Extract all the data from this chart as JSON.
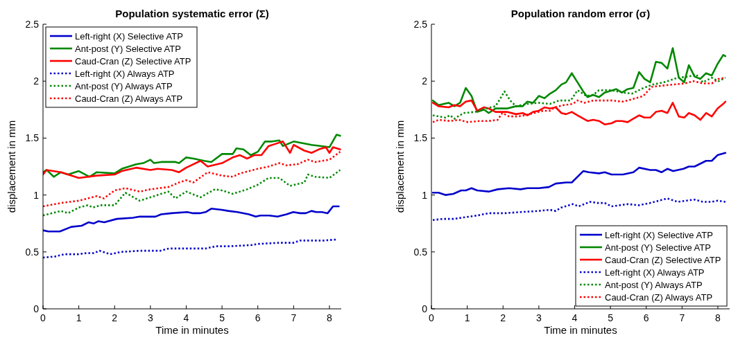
{
  "chart_data": [
    {
      "type": "line",
      "title": "Population systematic error (Σ)",
      "xlabel": "Time in minutes",
      "ylabel": "displacement in mm",
      "xlim": [
        0,
        8.33
      ],
      "ylim": [
        0,
        2.5
      ],
      "xticks": [
        0,
        1,
        2,
        3,
        4,
        5,
        6,
        7,
        8
      ],
      "yticks": [
        0,
        0.5,
        1,
        1.5,
        2,
        2.5
      ],
      "legend": "top left",
      "series": [
        {
          "name": "Left-right (X) Selective ATP",
          "color": "#0000cc",
          "line_style": "solid",
          "x": [
            0,
            0.15,
            0.47,
            0.79,
            1.08,
            1.27,
            1.42,
            1.55,
            1.71,
            2.06,
            2.51,
            2.7,
            3.14,
            3.3,
            3.59,
            4.03,
            4.19,
            4.38,
            4.54,
            4.7,
            4.99,
            5.18,
            5.43,
            5.75,
            5.94,
            6.07,
            6.32,
            6.55,
            6.8,
            6.99,
            7.18,
            7.34,
            7.5,
            7.63,
            7.79,
            7.95,
            8.1,
            8.26
          ],
          "values": [
            0.69,
            0.68,
            0.68,
            0.72,
            0.73,
            0.76,
            0.75,
            0.77,
            0.76,
            0.79,
            0.8,
            0.81,
            0.81,
            0.83,
            0.84,
            0.85,
            0.84,
            0.84,
            0.85,
            0.88,
            0.87,
            0.86,
            0.85,
            0.83,
            0.81,
            0.82,
            0.82,
            0.81,
            0.83,
            0.85,
            0.84,
            0.84,
            0.86,
            0.85,
            0.85,
            0.84,
            0.9,
            0.9
          ]
        },
        {
          "name": "Ant-post (Y) Selective ATP",
          "color": "#008800",
          "line_style": "solid",
          "x": [
            0,
            0.1,
            0.3,
            0.5,
            0.7,
            1,
            1.3,
            1.5,
            2,
            2.2,
            2.6,
            2.8,
            3,
            3.1,
            3.3,
            3.7,
            3.8,
            4,
            4.2,
            4.5,
            4.7,
            5,
            5.3,
            5.4,
            5.6,
            5.8,
            6,
            6.2,
            6.4,
            6.6,
            6.7,
            7,
            7.5,
            8,
            8.2,
            8.3
          ],
          "values": [
            1.2,
            1.22,
            1.16,
            1.2,
            1.18,
            1.21,
            1.16,
            1.2,
            1.19,
            1.23,
            1.27,
            1.28,
            1.31,
            1.28,
            1.29,
            1.29,
            1.28,
            1.33,
            1.32,
            1.3,
            1.29,
            1.36,
            1.36,
            1.41,
            1.4,
            1.35,
            1.38,
            1.47,
            1.47,
            1.48,
            1.43,
            1.47,
            1.44,
            1.42,
            1.53,
            1.52
          ]
        },
        {
          "name": "Caud-Cran (Z) Selective ATP",
          "color": "#ff0000",
          "line_style": "solid",
          "x": [
            0,
            0.1,
            0.5,
            0.7,
            1,
            1.5,
            2,
            2.2,
            2.6,
            3,
            3.2,
            3.6,
            3.8,
            4,
            4.4,
            4.6,
            5,
            5.3,
            5.5,
            5.7,
            5.9,
            6.1,
            6.3,
            6.5,
            6.7,
            6.9,
            7,
            7.3,
            7.5,
            7.7,
            7.9,
            8,
            8.1,
            8.3
          ],
          "values": [
            1.18,
            1.22,
            1.2,
            1.18,
            1.15,
            1.17,
            1.18,
            1.21,
            1.24,
            1.22,
            1.23,
            1.22,
            1.2,
            1.24,
            1.3,
            1.25,
            1.28,
            1.33,
            1.35,
            1.32,
            1.35,
            1.35,
            1.43,
            1.45,
            1.47,
            1.37,
            1.44,
            1.39,
            1.37,
            1.4,
            1.42,
            1.37,
            1.42,
            1.4
          ]
        },
        {
          "name": "Left-right (X) Always ATP",
          "color": "#0000cc",
          "line_style": "dotted",
          "x": [
            0,
            0.34,
            0.6,
            0.98,
            1.23,
            1.42,
            1.58,
            1.87,
            2.19,
            2.7,
            3.27,
            3.52,
            4.1,
            4.54,
            4.83,
            5.24,
            5.81,
            6,
            6.58,
            6.99,
            7.18,
            7.47,
            7.85,
            8.23
          ],
          "values": [
            0.45,
            0.46,
            0.48,
            0.48,
            0.49,
            0.49,
            0.51,
            0.48,
            0.5,
            0.51,
            0.51,
            0.53,
            0.53,
            0.53,
            0.55,
            0.55,
            0.56,
            0.57,
            0.58,
            0.58,
            0.6,
            0.6,
            0.6,
            0.61
          ]
        },
        {
          "name": "Ant-post (Y) Always ATP",
          "color": "#008800",
          "line_style": "dotted",
          "x": [
            0,
            0.5,
            0.7,
            1,
            1.25,
            1.4,
            1.6,
            2,
            2.3,
            2.7,
            3,
            3.5,
            3.7,
            4,
            4.4,
            4.8,
            5,
            5.3,
            5.7,
            6,
            6.3,
            6.6,
            6.9,
            7.3,
            7.4,
            7.6,
            8,
            8.3
          ],
          "values": [
            0.82,
            0.86,
            0.84,
            0.89,
            0.91,
            0.89,
            0.91,
            0.91,
            1.02,
            0.95,
            0.98,
            1.03,
            0.97,
            1.03,
            0.98,
            1.05,
            1.04,
            1.01,
            1.05,
            1.09,
            1.15,
            1.15,
            1.08,
            1.11,
            1.18,
            1.16,
            1.15,
            1.22
          ]
        },
        {
          "name": "Caud-Cran (Z) Always ATP",
          "color": "#ff0000",
          "line_style": "dotted",
          "x": [
            0,
            0.5,
            1,
            1.5,
            1.7,
            2,
            2.3,
            2.7,
            3,
            3.5,
            3.8,
            4,
            4.2,
            4.6,
            5,
            5.3,
            5.5,
            6,
            6.3,
            6.6,
            6.8,
            7.1,
            7.4,
            7.6,
            8,
            8.3
          ],
          "values": [
            0.9,
            0.93,
            0.95,
            0.99,
            0.97,
            1.04,
            1.06,
            1.03,
            1.05,
            1.07,
            1.11,
            1.13,
            1.11,
            1.2,
            1.17,
            1.16,
            1.19,
            1.23,
            1.25,
            1.28,
            1.26,
            1.27,
            1.31,
            1.29,
            1.31,
            1.38
          ]
        }
      ]
    },
    {
      "type": "line",
      "title": "Population random error (σ)",
      "xlabel": "Time in minutes",
      "ylabel": "displacement in mm",
      "xlim": [
        0,
        8.33
      ],
      "ylim": [
        0,
        2.5
      ],
      "xticks": [
        0,
        1,
        2,
        3,
        4,
        5,
        6,
        7,
        8
      ],
      "yticks": [
        0,
        0.5,
        1,
        1.5,
        2,
        2.5
      ],
      "legend": "bottom right",
      "series": [
        {
          "name": "Left-right (X) Selective ATP",
          "color": "#0000cc",
          "line_style": "solid",
          "x": [
            0.04,
            0.2,
            0.39,
            0.61,
            0.83,
            0.96,
            1.12,
            1.28,
            1.6,
            1.85,
            2.17,
            2.49,
            2.68,
            3,
            3.28,
            3.47,
            3.76,
            3.92,
            4.24,
            4.4,
            4.68,
            4.84,
            5.03,
            5.35,
            5.64,
            5.8,
            6.11,
            6.27,
            6.43,
            6.59,
            6.75,
            7.04,
            7.19,
            7.35,
            7.67,
            7.83,
            7.99,
            8.21
          ],
          "values": [
            1.02,
            1.02,
            1,
            1.01,
            1.04,
            1.04,
            1.06,
            1.04,
            1.03,
            1.05,
            1.06,
            1.05,
            1.06,
            1.06,
            1.07,
            1.1,
            1.11,
            1.11,
            1.21,
            1.2,
            1.19,
            1.2,
            1.18,
            1.18,
            1.2,
            1.24,
            1.22,
            1.22,
            1.2,
            1.23,
            1.21,
            1.23,
            1.25,
            1.25,
            1.3,
            1.3,
            1.35,
            1.37
          ]
        },
        {
          "name": "Ant-post (Y) Selective ATP",
          "color": "#008800",
          "line_style": "solid",
          "x": [
            0.04,
            0.2,
            0.48,
            0.64,
            0.8,
            0.96,
            1.12,
            1.28,
            1.47,
            1.6,
            1.79,
            2.11,
            2.36,
            2.55,
            2.68,
            2.84,
            3,
            3.16,
            3.31,
            3.47,
            3.63,
            3.76,
            3.92,
            4.08,
            4.24,
            4.36,
            4.52,
            4.68,
            4.84,
            5.16,
            5.32,
            5.48,
            5.64,
            5.8,
            5.95,
            6.11,
            6.27,
            6.43,
            6.59,
            6.74,
            6.91,
            7.06,
            7.19,
            7.35,
            7.51,
            7.67,
            7.83,
            7.99,
            8.15,
            8.21
          ],
          "values": [
            1.83,
            1.79,
            1.81,
            1.78,
            1.81,
            1.94,
            1.87,
            1.73,
            1.75,
            1.72,
            1.76,
            1.76,
            1.78,
            1.78,
            1.82,
            1.81,
            1.87,
            1.85,
            1.89,
            1.92,
            1.97,
            1.99,
            2.07,
            1.99,
            1.91,
            1.86,
            1.88,
            1.86,
            1.9,
            1.93,
            1.9,
            1.93,
            1.94,
            2.08,
            2.02,
            1.99,
            2.17,
            2.16,
            2.11,
            2.29,
            2.03,
            1.99,
            2.14,
            2.04,
            2.02,
            2.07,
            2.05,
            2.15,
            2.23,
            2.22
          ]
        },
        {
          "name": "Caud-Cran (Z) Selective ATP",
          "color": "#ff0000",
          "line_style": "solid",
          "x": [
            0.04,
            0.2,
            0.48,
            0.64,
            0.8,
            0.96,
            1.12,
            1.28,
            1.47,
            1.6,
            1.79,
            2.11,
            2.36,
            2.55,
            2.68,
            2.84,
            3,
            3.16,
            3.31,
            3.47,
            3.63,
            3.76,
            3.92,
            4.08,
            4.36,
            4.52,
            4.68,
            4.84,
            5.03,
            5.16,
            5.32,
            5.48,
            5.64,
            5.8,
            5.95,
            6.11,
            6.27,
            6.43,
            6.59,
            6.74,
            6.91,
            7.06,
            7.19,
            7.35,
            7.51,
            7.67,
            7.83,
            7.99,
            8.15,
            8.21
          ],
          "values": [
            1.81,
            1.78,
            1.77,
            1.79,
            1.78,
            1.82,
            1.83,
            1.74,
            1.77,
            1.76,
            1.73,
            1.73,
            1.71,
            1.72,
            1.7,
            1.73,
            1.74,
            1.77,
            1.76,
            1.77,
            1.72,
            1.71,
            1.73,
            1.7,
            1.65,
            1.66,
            1.65,
            1.62,
            1.63,
            1.65,
            1.65,
            1.64,
            1.67,
            1.7,
            1.68,
            1.68,
            1.73,
            1.74,
            1.72,
            1.81,
            1.69,
            1.68,
            1.72,
            1.7,
            1.66,
            1.72,
            1.69,
            1.76,
            1.8,
            1.82
          ]
        },
        {
          "name": "Left-right (X) Always ATP",
          "color": "#0000cc",
          "line_style": "dotted",
          "x": [
            0.04,
            0.32,
            0.64,
            0.83,
            1.28,
            1.6,
            2.04,
            2.49,
            3,
            3.31,
            3.47,
            3.63,
            3.95,
            4.11,
            4.43,
            4.65,
            4.84,
            5.03,
            5.48,
            5.8,
            6.11,
            6.59,
            6.88,
            7.35,
            7.58,
            7.83,
            7.99,
            8.21
          ],
          "values": [
            0.78,
            0.79,
            0.79,
            0.8,
            0.82,
            0.84,
            0.84,
            0.85,
            0.86,
            0.87,
            0.86,
            0.89,
            0.92,
            0.9,
            0.94,
            0.93,
            0.93,
            0.9,
            0.92,
            0.91,
            0.93,
            0.97,
            0.94,
            0.96,
            0.94,
            0.94,
            0.95,
            0.94
          ]
        },
        {
          "name": "Ant-post (Y) Always ATP",
          "color": "#008800",
          "line_style": "dotted",
          "x": [
            0.04,
            0.2,
            0.39,
            0.52,
            0.64,
            0.9,
            1.22,
            1.53,
            1.79,
            1.91,
            2.04,
            2.2,
            2.36,
            2.68,
            3,
            3.31,
            3.57,
            3.89,
            4.08,
            4.33,
            4.52,
            4.68,
            5.03,
            5.35,
            5.6,
            5.92,
            6.18,
            6.49,
            6.69,
            6.88,
            7.19,
            7.39,
            7.58,
            7.83,
            8.02,
            8.21
          ],
          "values": [
            1.7,
            1.69,
            1.68,
            1.7,
            1.67,
            1.72,
            1.73,
            1.76,
            1.78,
            1.84,
            1.91,
            1.83,
            1.78,
            1.8,
            1.81,
            1.8,
            1.83,
            1.83,
            1.92,
            1.87,
            1.88,
            1.92,
            1.92,
            1.9,
            1.89,
            1.94,
            1.97,
            1.99,
            2.01,
            2.03,
            2.04,
            2.06,
            1.99,
            2.03,
            2,
            2.03
          ]
        },
        {
          "name": "Caud-Cran (Z) Always ATP",
          "color": "#ff0000",
          "line_style": "dotted",
          "x": [
            0.04,
            0.2,
            0.52,
            0.77,
            1.02,
            1.34,
            1.6,
            1.85,
            1.98,
            2.17,
            2.42,
            2.61,
            2.87,
            3.12,
            3.31,
            3.44,
            3.7,
            3.95,
            4.08,
            4.27,
            4.52,
            5.03,
            5.35,
            5.6,
            5.92,
            6.15,
            6.43,
            6.75,
            7.07,
            7.32,
            7.58,
            7.83,
            8.02,
            8.21
          ],
          "values": [
            1.64,
            1.66,
            1.65,
            1.66,
            1.64,
            1.65,
            1.65,
            1.66,
            1.72,
            1.69,
            1.69,
            1.7,
            1.72,
            1.74,
            1.74,
            1.77,
            1.79,
            1.8,
            1.83,
            1.81,
            1.83,
            1.83,
            1.82,
            1.84,
            1.87,
            1.95,
            1.96,
            1.97,
            1.98,
            2,
            1.98,
            1.98,
            2.02,
            2.03
          ]
        }
      ]
    }
  ]
}
